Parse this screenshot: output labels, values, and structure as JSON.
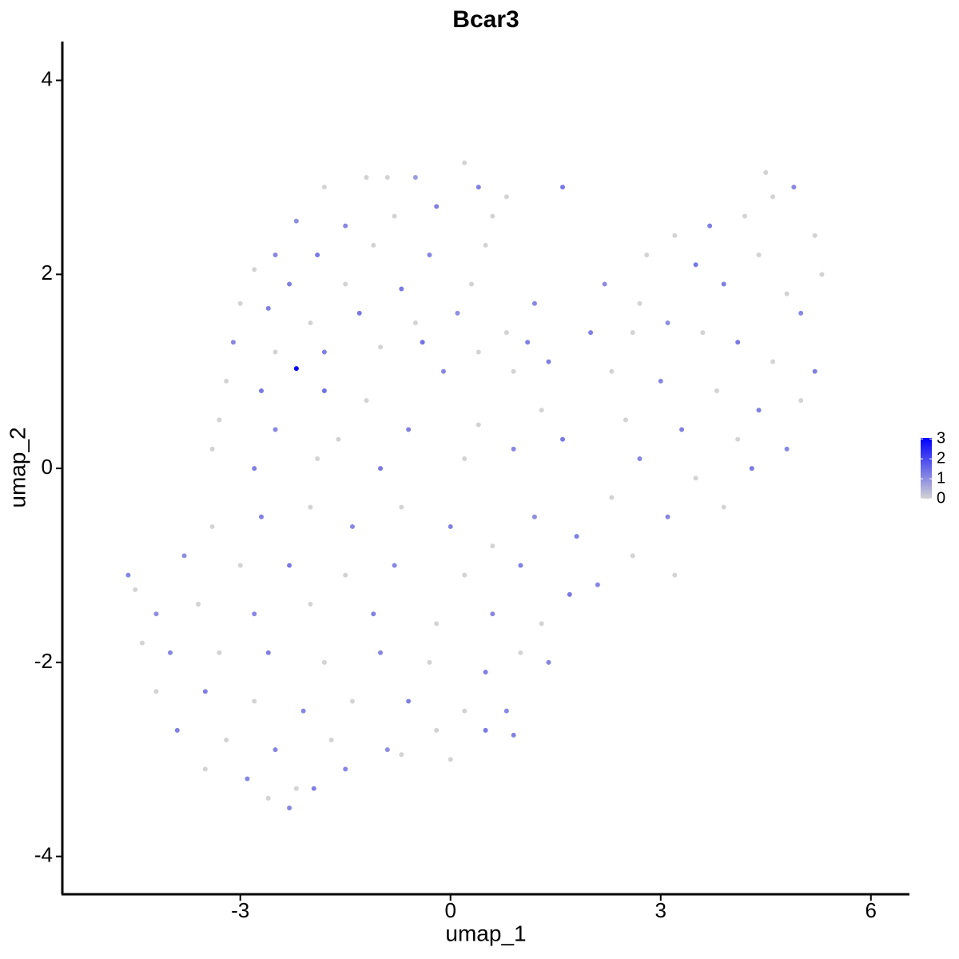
{
  "chart_data": {
    "type": "scatter",
    "title": "Bcar3",
    "x_label": "umap_1",
    "y_label": "umap_2",
    "xlim": [
      -5.54,
      6.55
    ],
    "ylim": [
      -4.39,
      4.4
    ],
    "xticks": [
      -3,
      0,
      3,
      6
    ],
    "yticks": [
      -4,
      -2,
      0,
      2,
      4
    ],
    "colors": [
      "#d3d3d3",
      "#0000ff"
    ],
    "colorlim": [
      0,
      3.05
    ],
    "colorticks": [
      0,
      1,
      2,
      3
    ],
    "x": [
      -2.2,
      -1.8,
      -1.2,
      -0.9,
      -0.5,
      0.2,
      0.4,
      0.8,
      1.6,
      -2.2,
      -1.5,
      -0.8,
      -0.2,
      0.6,
      -2.5,
      -1.9,
      -1.1,
      -0.3,
      0.5,
      -2.8,
      -2.3,
      -1.5,
      -0.7,
      0.3,
      1.2,
      -3.0,
      -2.6,
      -2.0,
      -1.3,
      -0.5,
      0.1,
      0.8,
      -3.1,
      -2.5,
      -1.8,
      -1.0,
      -0.4,
      0.4,
      1.1,
      -3.2,
      -2.7,
      -1.8,
      -1.2,
      -0.1,
      0.9,
      1.4,
      -3.3,
      -2.5,
      -1.6,
      -0.6,
      0.4,
      1.3,
      -3.4,
      -2.8,
      -1.9,
      -1.0,
      0.2,
      0.9,
      1.6,
      2.2,
      2.8,
      3.2,
      3.7,
      4.2,
      4.5,
      4.6,
      4.9,
      5.2,
      5.3,
      4.4,
      3.5,
      2.7,
      3.9,
      4.8,
      5.0,
      2.0,
      2.6,
      3.1,
      3.6,
      4.1,
      4.6,
      5.2,
      2.3,
      3.0,
      3.8,
      4.4,
      5.0,
      2.5,
      3.3,
      4.1,
      4.8,
      2.7,
      3.5,
      4.3,
      2.3,
      3.1,
      3.9,
      2.6,
      3.2,
      1.8,
      2.1,
      1.2,
      0.6,
      0.0,
      -0.7,
      -1.4,
      -2.0,
      -2.7,
      -3.4,
      -3.8,
      -3.0,
      -2.3,
      -1.5,
      -0.8,
      0.2,
      1.0,
      1.7,
      1.3,
      0.6,
      -0.2,
      -1.1,
      -2.0,
      -2.8,
      -3.6,
      -4.2,
      -4.5,
      -4.6,
      -4.4,
      -4.0,
      -3.3,
      -2.6,
      -1.8,
      -1.0,
      -0.3,
      0.5,
      1.0,
      1.4,
      -4.2,
      -3.5,
      -2.8,
      -2.1,
      -1.4,
      -0.6,
      0.2,
      0.8,
      -3.9,
      -3.2,
      -2.5,
      -1.7,
      -0.9,
      -0.2,
      0.5,
      0.9,
      -3.5,
      -2.9,
      -2.2,
      -1.5,
      -0.7,
      0.0,
      -2.3,
      -2.6,
      -1.95
    ],
    "y": [
      1.03,
      2.9,
      3.0,
      3.0,
      3.0,
      3.15,
      2.9,
      2.8,
      2.9,
      2.55,
      2.5,
      2.6,
      2.7,
      2.6,
      2.2,
      2.2,
      2.3,
      2.2,
      2.3,
      2.05,
      1.9,
      1.9,
      1.85,
      1.9,
      1.7,
      1.7,
      1.65,
      1.5,
      1.6,
      1.5,
      1.6,
      1.4,
      1.3,
      1.2,
      1.2,
      1.25,
      1.3,
      1.2,
      1.3,
      0.9,
      0.8,
      0.8,
      0.7,
      1.0,
      1.0,
      1.1,
      0.5,
      0.4,
      0.3,
      0.4,
      0.45,
      0.6,
      0.2,
      0.0,
      0.1,
      0.0,
      0.1,
      0.2,
      0.3,
      1.9,
      2.2,
      2.4,
      2.5,
      2.6,
      3.05,
      2.8,
      2.9,
      2.4,
      2.0,
      2.2,
      2.1,
      1.7,
      1.9,
      1.8,
      1.6,
      1.4,
      1.4,
      1.5,
      1.4,
      1.3,
      1.1,
      1.0,
      1.0,
      0.9,
      0.8,
      0.6,
      0.7,
      0.5,
      0.4,
      0.3,
      0.2,
      0.1,
      -0.1,
      0.0,
      -0.3,
      -0.5,
      -0.4,
      -0.9,
      -1.1,
      -0.7,
      -1.2,
      -0.5,
      -0.8,
      -0.6,
      -0.4,
      -0.6,
      -0.4,
      -0.5,
      -0.6,
      -0.9,
      -1.0,
      -1.0,
      -1.1,
      -1.0,
      -1.1,
      -1.0,
      -1.3,
      -1.6,
      -1.5,
      -1.6,
      -1.5,
      -1.4,
      -1.5,
      -1.4,
      -1.5,
      -1.25,
      -1.1,
      -1.8,
      -1.9,
      -1.9,
      -1.9,
      -2.0,
      -1.9,
      -2.0,
      -2.1,
      -1.9,
      -2.0,
      -2.3,
      -2.3,
      -2.4,
      -2.5,
      -2.4,
      -2.4,
      -2.5,
      -2.5,
      -2.7,
      -2.8,
      -2.9,
      -2.8,
      -2.9,
      -2.7,
      -2.7,
      -2.75,
      -3.1,
      -3.2,
      -3.3,
      -3.1,
      -2.95,
      -3.0,
      -3.5,
      -3.4,
      -3.3
    ],
    "values": [
      3.05,
      0,
      0,
      0,
      0.8,
      0,
      1.2,
      0,
      1.3,
      1.0,
      1.1,
      0,
      1.2,
      0,
      1.1,
      1.3,
      0,
      1.1,
      0,
      0,
      1.2,
      0,
      1.3,
      0,
      1.1,
      0,
      1.2,
      0,
      1.3,
      0,
      1.0,
      0,
      1.1,
      0,
      1.2,
      0,
      1.4,
      0,
      1.2,
      0,
      1.3,
      1.4,
      0,
      1.1,
      0,
      1.2,
      0,
      1.1,
      0,
      1.2,
      0,
      0,
      0,
      1.2,
      0,
      1.3,
      0,
      1.1,
      1.3,
      1.0,
      0,
      0,
      1.2,
      0,
      0,
      0,
      1.1,
      0,
      0,
      0,
      1.3,
      0,
      1.2,
      0,
      1.1,
      1.2,
      0,
      1.0,
      0,
      1.3,
      0,
      1.2,
      0,
      1.1,
      0,
      1.2,
      0,
      0,
      1.2,
      0,
      1.1,
      1.1,
      0,
      1.3,
      0,
      1.1,
      0,
      0,
      0,
      1.2,
      1.1,
      1.0,
      0,
      1.2,
      0,
      1.1,
      0,
      1.2,
      0,
      1.0,
      0,
      1.3,
      0,
      1.1,
      0,
      1.2,
      1.3,
      0,
      1.1,
      0,
      1.2,
      0,
      1.1,
      0,
      1.0,
      0,
      1.1,
      0,
      1.1,
      0,
      1.2,
      0,
      1.1,
      0,
      1.2,
      0,
      1.1,
      0,
      1.2,
      0,
      1.1,
      0,
      1.2,
      0,
      1.1,
      1.2,
      0,
      1.1,
      0,
      1.0,
      0,
      1.3,
      1.2,
      0,
      1.1,
      0,
      1.1,
      0,
      0,
      1.1,
      0,
      1.2
    ]
  }
}
